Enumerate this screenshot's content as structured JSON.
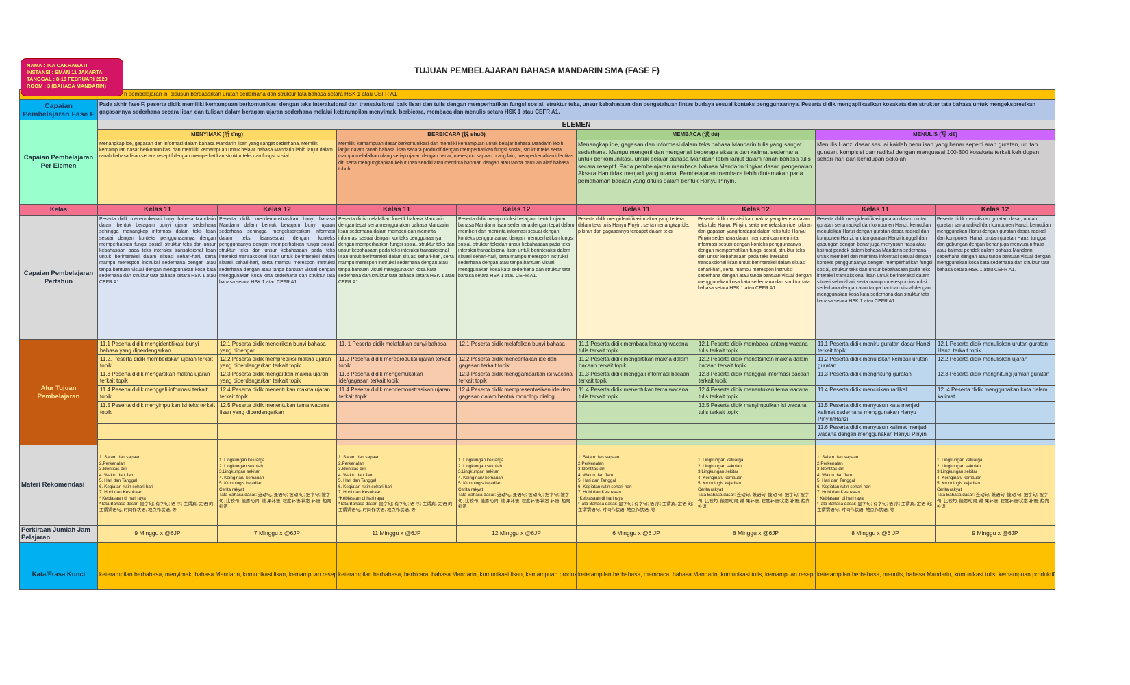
{
  "header": {
    "title": "TUJUAN  PEMBELAJARAN BAHASA MANDARIN SMA (FASE F)"
  },
  "note": {
    "lines": [
      "NAMA : INA CAKRAWATI",
      "INSTANSI : SMAN 11 JAKARTA",
      "TANGGAL : 8-10 FEBRUARI 2020",
      "ROOM : 3 (BAHASA MANDARIN)"
    ]
  },
  "banner": "n pembelajaran ini disusun berdasarkan urutan sederhana dan struktur tata bahasa setara HSK 1 atau CEFR A1",
  "labels": {
    "fase": "Capaian Pembelajaran Fase F",
    "elemen": "ELEMEN",
    "per_elemen": "Capaian Pembelajaran Per Elemen",
    "kelas": "Kelas",
    "pertahun": "Capaian Pembelajaran Pertahun",
    "alur": "Alur Tujuan Pembelajaran",
    "materi": "Materi Rekomendasi",
    "jam": "Perkiraan Jumlah Jam Pelajaran",
    "kunci": "Kata/Frasa Kunci"
  },
  "fase_f": "Pada akhir fase F, peserta didik memiliki kemampuan berkomunikasi dengan teks interaksional dan transaksional baik lisan dan tulis dengan memperhatikan fungsi sosial, struktur teks, unsur kebahasaan dan pengetahuan lintas budaya sesuai konteks penggunaannya. Peserta didik mengaplikasikan kosakata dan struktur tata bahasa untuk mengekspresikan gagasannya sederhana secara lisan dan tulisan dalam beragam ujaran sederhana melalui keterampilan menyimak, berbicara, membaca dan menulis setara HSK 1 atau CEFR A1.",
  "elements": [
    {
      "name": "MENYIMAK (听 tīng)",
      "desc": "Menangkap ide, gagasan dan informasi dalam bahasa Mandarin  lisan yang sangat sederhana. Memiliki kemampuan dasar berkomunikasi dan memiliki kemampuan untuk belajar bahasa Mandarin lebih lanjut dalam ranah bahasa lisan secara reseptif dengan memperhatikan struktur teks dan fungsi sosial .",
      "kata_kunci": "keterampilan berbahasa, menyimak, bahasa Mandarin, komunikasi lisan, kemampuan reseptif",
      "kelas": [
        {
          "label": "Kelas 11",
          "capaian": "Peserta didik menemukenali bunyi bahasa Mandarin dalam bentuk beragam bunyi ujaran sederhana sehingga menangkap informasi dalam teks lisan sesuai dengan konteks penggunaannya dengan memperhatikan fungsi sosial, struktur teks dan unsur kebahasaan pada teks interaksi transaksional lisan untuk berinteraksi dalam situasi sehari-hari, serta mampu merespon instruksi sederhana dengan atau tanpa bantuan visual dengan menggunakan kosa kata sederhana dan struktur tata bahasa setara HSK 1 atau CEFR A1.",
          "alur": [
            "11.1 Peserta didik mengidentifikasi bunyi bahasa yang diperdengarkan",
            "11.2. Peserta didik membedakan ujaran terkait topik",
            "11.3 Peserta didik mengartikan makna ujaran terkait topik",
            "11.4 Peserta didik menggali informasi terkait topik",
            "11.5 Peserta didik menyimpulkan isi teks terkait topik"
          ],
          "materi": [
            "1. Salam dan sapaan",
            "2.Perkenalan",
            "3.Identitas diri",
            "4. Waktu dan Jam",
            "5. Hari dan Tanggal",
            "6. Kegiatan rutin sehari-hari",
            "7. Hobi dan Kesukaan",
            "* Kebiasaan di hari raya",
            "*Tata Bahasa dasar: 是字句; 有字句; 语 序; 主谓宾, 定语 的; 主谓谓语句, 时间作状语, 地点作状语, 等"
          ],
          "jam": "9 Minggu x @6JP"
        },
        {
          "label": "Kelas 12",
          "capaian": "Peserta didik mendemonstrasikan bunyi bahasa Mandarin dalam bentuk beragam bunyi ujaran sederhana sehingga mengekspresikan informasi dalam teks lisansesuai dengan konteks penggunaanya dengan memperhatikan fungsi sosial, struktur teks dan unsur kebahasaan pada teks interaksi transaksional lisan untuk berinteraksi dalam situasi sehari-hari, serta mampu merespon instruksi sederhana dengan atau tanpa bantuan visual dengan menggunakan kosa kata sederhana dan struktur tata bahasa setara HSK 1 atau CEFR A1.",
          "alur": [
            "12.1 Peserta didik mencirikan bunyi bahasa yang didengar",
            "12.2 Peserta didik memprediksi makna ujaran yang diperdengarkan terkait topik",
            "12.3 Peserta didik mengaitkan makna  ujaran yang diperdengarkan terkait topik",
            "12.4 Peserta didik menentukan makna ujaran terkait topik",
            "12.5 Peserta didik menentukan tema wacana lisan yang diperdengarkan"
          ],
          "materi": [
            "1. Lingkungan keluarga",
            "2. Lingkungan sekolah",
            "3.Lingkungan sekitar",
            "4. Keinginan/ kemauan",
            "5. Kronologis kejadian",
            "Cerita rakyat",
            "Tata Bahasa dasar: 连动句, 兼语句; 被动 句; 把字句; 被字句; 比较句; 能愿动词; 结 果补语; 程度补语/状态 补语; 趋向补语"
          ],
          "jam": "7 Minggu x @6JP"
        }
      ]
    },
    {
      "name": "BERBICARA (说 shuō)",
      "desc": "Memiliki kemampuan dasar berkomunikasi dan memiliki kemampuan untuk belajar bahasa Mandarin lebih lanjut dalam ranah bahasa lisan secara produktif dengan memperhatikan fungsi sosial, struktur teks serta mampu melafalkan ulang setiap ujaran dengan benar, merespon sapaan orang lain, memperkenalkan identitas diri serta mengungkapkan kebutuhan sendiri atau meminta bantuan dengan atau tanpa bantuan alat/ bahasa tubuh.",
      "kata_kunci": "keterampilan berbahasa, berbicara, bahasa Mandarin, komunikasi lisan, kemampuan produktif",
      "kelas": [
        {
          "label": "Kelas 11",
          "capaian": "Peserta didik melafalkan fonetik bahasa Mandarin dengan tepat serta menggunakan bahasa Mandarin lisan sederhana dalam memberi dan meminta informasi sesuai dengan konteks penggunaanya dengan memperhatikan fungsi sosial, struktur teks dan unsur kebahasaan pada teks interaksi transaksional lisan untuk berinteraksi dalam situasi sehari-hari, serta mampu merespon instruksi sederhana dengan atau tanpa bantuan visual  menggunakan kosa kata sederhana dan struktur tata bahasa setara HSK 1 atau CEFR A1.",
          "alur": [
            "11. 1 Peserta didik melafalkan bunyi bahasa",
            "11.2 Peserta didik mereproduksi ujaran terkait topik",
            "11.3 Peserta didik mengemukakan ide/gagasan terkait topik",
            "11.4 Peserta didik mendemonstrasikan ujaran terkait topik"
          ],
          "materi": [
            "1. Salam dan sapaan",
            "2.Perkenalan",
            "3.Identitas diri",
            "4. Waktu dan Jam",
            "5. Hari dan Tanggal",
            "6. Kegiatan rutin sehari-hari",
            "7. Hobi dan Kesukaan",
            "*Kebiasaan di hari raya",
            "*Tata Bahasa dasar: 是字句; 有字句; 语 序; 主谓宾, 定语 的; 主谓谓语句, 时间作状语, 地点作状语, 等"
          ],
          "jam": "11 Minggu x @6JP"
        },
        {
          "label": "Kelas 12",
          "capaian": "Peserta didik memproduksi beragam bentuk ujaran bahasa Mandarin lisan sederhana dengan tepat dalam memberi dan meminta informasi sesuai dengan konteks penggunaanya dengan memperhatikan fungsi sosial, struktur teksdan unsur kebahasaan pada teks interaksi transaksional lisan untuk berinteraksi dalam situasi sehari-hari, serta mampu merespon instruksi sederhana dengan atau tanpa bantuan visual menggunakan kosa kata sederhana dan struktur tata bahasa setara HSK 1 atau CEFR A1.",
          "alur": [
            "12.1 Peserta didik melafalkan bunyi bahasa",
            "12.2 Peserta didik menceritakan ide dan gagasan terkait topik",
            "12.3 Peserta didik menggambarkan isi wacana terkait topik",
            "12.4 Peserta didik mempresentasikan ide dan gagasan dalam bentuk monolog/ dialog"
          ],
          "materi": [
            "1. Lingkungan keluarga",
            "2. Lingkungan sekolah",
            "3.Lingkungan sekitar",
            "4. Keinginan/ kemauan",
            "5. Kronologis kejadian",
            "Cerita rakyat",
            "Tata Bahasa dasar: 连动句, 兼语句; 被动 句; 把字句; 被字句; 比较句; 能愿动词; 结 果补语; 程度补语/状态 补语; 趋向补语"
          ],
          "jam": "12 Minggu x @6JP"
        }
      ]
    },
    {
      "name": "MEMBACA (读 dú)",
      "desc": "Menangkap ide, gagasan dan informasi dalam teks bahasa Mandarin tulis yang sangat sederhana. Mampu mengerti dan mengenali beberapa aksara dan kalimat sederhana untuk berkomunikasi,  untuk belajar bahasa Mandarin lebih lanjut dalam ranah bahasa tulis secara reseptif. Pada pembelajaran membaca bahasa Mandarin tingkat dasar, pengenalan Aksara Han tidak menjadi yang utama. Pembelajaran membaca lebih diutamakan pada pemahaman bacaan yang ditulis dalam bentuk Hanyu Pinyin.",
      "kata_kunci": "keterampilan berbahasa, membaca, bahasa Mandarin, komunikasi tulis, kemampuan reseptif",
      "kelas": [
        {
          "label": "Kelas 11",
          "capaian": "Peserta didik mengidentifikasi makna yang tertera dalam teks tulis Hanyu Pinyin, serta menangkap ide, pikiran dan gagasannya terdapat dalam teks",
          "alur": [
            "11.1 Peserta didik membaca lantang wacana tulis terkait topik",
            "11.2 Peserta didik mengartikan makna dalam bacaan terkait topik",
            "11.3 Peserta didik menggali informasi bacaan terkait topik",
            "11.4 Peserta didik menentukan tema wacana tulis terkait topik"
          ],
          "materi": [
            "1. Salam dan sapaan",
            "2.Perkenalan",
            "3.Identitas diri",
            "4. Waktu dan Jam",
            "5. Hari dan Tanggal",
            "6. Kegiatan rutin sehari-hari",
            "7. Hobi dan Kesukaan",
            "*Kebiasaan di hari raya",
            "*Tata Bahasa dasar: 是字句; 有字句; 语 序; 主谓宾, 定语 的; 主谓谓语句, 时间作状语, 地点作状语, 等"
          ],
          "jam": "6 Minggu x @6 JP"
        },
        {
          "label": "Kelas 12",
          "capaian": "Peserta didik menafsirkan makna yang tertera dalam teks tulis Hanyu Pinyin, serta menjelaskan ide, pikiran dan gagasan yang terdapat dalam teks tulis Hanyu Pinyin sederhana dalam memberi dan meminta informasi sesuai dengan konteks penggunaanya dengan memperhatikan fungsi sosial, struktur teks dan unsur kebahasaan pada teks interaksi transaksional lisan untuk berinteraksi dalam situasi sehari-hari, serta mampu merespon instruksi sederhana dengan atau tanpa bantuan visual dengan menggunakan kosa kata sederhana dan struktur tata bahasa setara HSK 1 atau CEFR A1.",
          "alur": [
            "12.1 Peserta didik membaca lantang wacana tulis terkait topik",
            "12.2 Peserta didik menafsirkan makna dalam bacaan terkait topik",
            "12.3 Peserta didik menggali informasi bacaan terkait topik",
            "12.4 Peserta didik menentukan tema wacana tulis terkait topik",
            "12.5 Peserta didik menyimpulkan isi wacana tulis terkait topik"
          ],
          "materi": [
            "1. Lingkungan keluarga",
            "2. Lingkungan sekolah",
            "3.Lingkungan sekitar",
            "4. Keinginan/ kemauan",
            "5. Kronologis kejadian",
            "Cerita rakyat",
            "Tata Bahasa dasar: 连动句, 兼语句; 被动 句; 把字句; 被字句; 比较句; 能愿动词; 结 果补语; 程度补语/状态 补语; 趋向补语"
          ],
          "jam": "8 Minggu x @6JP"
        }
      ]
    },
    {
      "name": "MENULIS (写 xiě)",
      "desc": "Menulis Hanzi dasar sesuai kaidah penulisan yang benar seperti arah guratan, urutan guratan, kompisisi dan radikal dengan menguasai 100-300 kosakata terkait kehidupan sehari-hari dan kehidupan sekolah",
      "kata_kunci": "keterampilan berbahasa, menulis, bahasa Mandarin, komunikasi tulis, kemampuan produktif",
      "kelas": [
        {
          "label": "Kelas 11",
          "capaian": "Peserta didik mengidentifikasi guratan dasar, urutan guratan serta radikal dan komponen Hanzi, kemudian menuliskan Hanzi dengan guratan dasar, radikal dan komponen Hanzi, urutan guratan Hanzi tunggal dan gabungan dengan benar juga menyusun frasa atau kalimat pendek dalam bahasa Mandarin sederhana untuk memberi dan meminta informasi sesuai dengan konteks penggunaanya dengan memperhatikan fungsi sosial, struktur teks dan unsur kebahasaan pada teks interaksi transaksional lisan untuk berinteraksi dalam situasi sehari-hari, serta mampu merespon instruksi sederhana dengan atau tanpa bantuan visual dengan menggunakan kosa kata sederhana dan struktur tata bahasa setara HSK 1 atau CEFR A1.",
          "alur": [
            "11.1 Peserta didik meniru guratan dasar Hanzi terkait topik",
            "11.2 Peserta didik menuliskan kembali  urutan guratan",
            "11.3 Peserta didik menghitung guratan",
            "11.4 Peserta didik mencirikan radikal",
            "11.5 Peserta didik menyusun kata menjadi kalimat sederhana menggunakan Hanyu Pinyin/Hanzi",
            "11.6 Peserta didik menyusun kalimat menjadi wacana dengan menggunakan Hanyu Pinyin"
          ],
          "materi": [
            "1. Salam dan sapaan",
            "2.Perkenalan",
            "3.Identitas diri",
            "4. Waktu dan Jam",
            "5. Hari dan Tanggal",
            "6. Kegiatan rutin sehari-hari",
            "7. Hobi dan Kesukaan",
            "* Kebiasaan di hari raya",
            "*Tata Bahasa dasar: 是字句; 有字句; 语 序; 主谓宾, 定语 的; 主谓谓语句, 时间作状语, 地点作状语, 等"
          ],
          "jam": "8 Minggu x @6 JP"
        },
        {
          "label": "Kelas 12",
          "capaian": "Peserta didik menuliskan guratan dasar, urutan guratan serta radikal dan komponen Hanzi, kemudian menggunakan Hanzi dengan guratan dasar, radikal dan komponen Hanzi, urutan guratan Hanzi tunggal dan gabungan dengan benar juga menyusun frasa atau kalimat pendek dalam bahasa Mandarin sederhana dengan atau tanpa bantuan visual dengan menggunakan kosa kata sederhana dan struktur tata bahasa setara HSK 1 atau CEFR A1.",
          "alur": [
            "12.1 Peserta didik menuliskan urutan guratan Hanzi terkait topik",
            "12.2 Peserta didik menuliskan ujaran",
            "12.3 Peserta didik menghitung jumlah guratan",
            "12. 4 Peserta didik menggunakan kata dalam kalimat"
          ],
          "materi": [
            "1. Lingkungan keluarga",
            "2. Lingkungan sekolah",
            "3.Lingkungan sekitar",
            "4. Keinginan/ kemauan",
            "5. Kronologis kejadian",
            "Cerita rakyat",
            "Tata Bahasa dasar: 连动句, 兼语句; 被动 句; 把字句; 被字句; 比较句; 能愿动词; 结 果补语; 程度补语/状态 补语; 趋向补语"
          ],
          "jam": "9 Minggu x @6JP"
        }
      ]
    }
  ]
}
